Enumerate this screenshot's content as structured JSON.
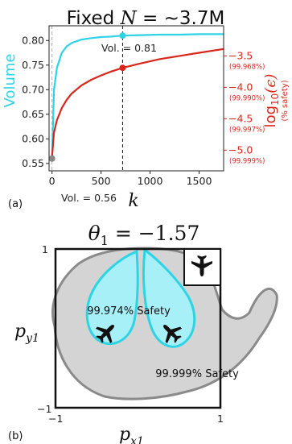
{
  "chart_data": [
    {
      "type": "line",
      "panel_label": "(a)",
      "title_prefix": "Fixed",
      "title_var": "N",
      "title_suffix": "= ~3.7M",
      "xlabel": "k",
      "ylabel_left": "Volume",
      "ylabel_right_main": "log",
      "ylabel_right_sub": "10",
      "ylabel_right_arg": "(ϵ)",
      "ylabel_right_note": "(% safety)",
      "xlim": [
        -30,
        1750
      ],
      "ylim_left": [
        0.535,
        0.83
      ],
      "ylim_right": [
        -5.33,
        -3.02
      ],
      "x_ticks": [
        0,
        500,
        1000,
        1500
      ],
      "x_tick_labels": [
        "0",
        "500",
        "1000",
        "1500"
      ],
      "y_left_ticks": [
        0.55,
        0.6,
        0.65,
        0.7,
        0.75,
        0.8
      ],
      "y_left_tick_labels": [
        "0.55",
        "0.60",
        "0.65",
        "0.70",
        "0.75",
        "0.80"
      ],
      "y_right_ticks": [
        -3.5,
        -4.0,
        -4.5,
        -5.0
      ],
      "y_right_tick_labels": [
        "−3.5",
        "−4.0",
        "−4.5",
        "−5.0"
      ],
      "y_right_safety_labels": [
        "(99.968%)",
        "(99.990%)",
        "(99.997%)",
        "(99.999%)"
      ],
      "series": [
        {
          "axis": "left",
          "color": "#2ed3e6",
          "x": [
            0,
            20,
            50,
            100,
            150,
            200,
            300,
            400,
            500,
            600,
            720,
            900,
            1100,
            1300,
            1500,
            1750
          ],
          "y": [
            0.56,
            0.7,
            0.745,
            0.775,
            0.788,
            0.795,
            0.802,
            0.805,
            0.807,
            0.808,
            0.81,
            0.811,
            0.812,
            0.812,
            0.813,
            0.813
          ]
        },
        {
          "axis": "right",
          "color": "#d9261c",
          "x": [
            0,
            20,
            50,
            100,
            150,
            200,
            300,
            400,
            500,
            600,
            720,
            900,
            1100,
            1300,
            1500,
            1750
          ],
          "y": [
            -5.1,
            -4.72,
            -4.52,
            -4.33,
            -4.2,
            -4.1,
            -3.97,
            -3.88,
            -3.81,
            -3.75,
            -3.69,
            -3.62,
            -3.55,
            -3.5,
            -3.45,
            -3.39
          ]
        }
      ],
      "markers": [
        {
          "series": "left",
          "x": 720,
          "y": 0.81,
          "color": "#2ed3e6"
        },
        {
          "series": "right",
          "x": 720,
          "y": -3.69,
          "color": "#d9261c"
        },
        {
          "series": "left",
          "x": 0,
          "y": 0.56,
          "color": "#888888"
        }
      ],
      "vlines": [
        0,
        720
      ],
      "annotations": [
        "Vol. = 0.81",
        "Vol. = 0.56"
      ]
    },
    {
      "type": "region-map",
      "panel_label": "(b)",
      "title_var": "θ",
      "title_sub": "1",
      "title_value": "= −1.57",
      "xlabel_var": "p",
      "xlabel_sub": "x1",
      "ylabel_var": "p",
      "ylabel_sub": "y1",
      "x_tick_labels": [
        "−1",
        "1"
      ],
      "y_tick_labels": [
        "1",
        "−1"
      ],
      "regions": [
        {
          "label": "99.974% Safety",
          "color": "#a8f0f7",
          "edge": "#2ed3e6"
        },
        {
          "label": "99.999% Safety",
          "color": "#d4d4d4",
          "edge": "#8a8a8a"
        }
      ],
      "icons": [
        "airplane-icon",
        "airplane-icon",
        "airplane-icon"
      ]
    }
  ]
}
